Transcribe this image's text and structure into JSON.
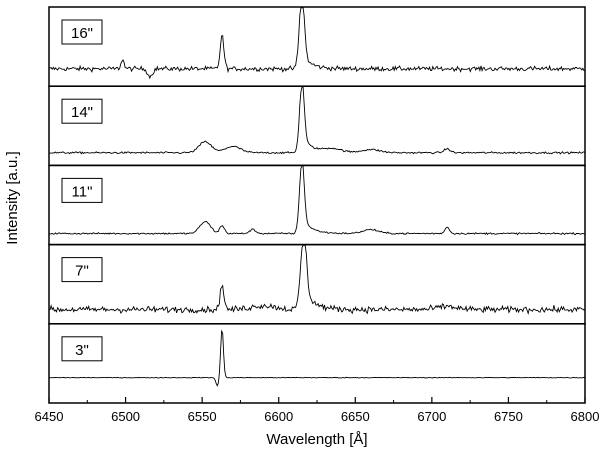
{
  "chart_data": {
    "type": "line",
    "xlabel": "Wavelength [Å]",
    "ylabel": "Intensity [a.u.]",
    "xlim": [
      6450,
      6800
    ],
    "xticks": [
      6450,
      6500,
      6550,
      6600,
      6650,
      6700,
      6750,
      6800
    ],
    "xtick_labels": [
      "6450",
      "6500",
      "6550",
      "6600",
      "6650",
      "6700",
      "6750",
      "6800"
    ],
    "grid": false,
    "line_color": "#000000",
    "panels": [
      {
        "label": "16\"",
        "ylim": [
          0,
          1
        ],
        "baseline": 0.22,
        "noise": 0.055,
        "lines": [
          {
            "center": 6563,
            "amp": 0.42,
            "width": 1.2
          },
          {
            "center": 6615,
            "amp": 0.88,
            "width": 1.6,
            "tail": 0.18
          },
          {
            "center": 6498,
            "amp": 0.12,
            "width": 1.0
          }
        ],
        "dips": [
          {
            "center": 6516,
            "amp": 0.1,
            "width": 1.5
          }
        ]
      },
      {
        "label": "14\"",
        "ylim": [
          0,
          1
        ],
        "baseline": 0.16,
        "noise": 0.022,
        "bumps": [
          {
            "center": 6552,
            "amp": 0.14,
            "width": 4.0
          },
          {
            "center": 6570,
            "amp": 0.08,
            "width": 5.0
          },
          {
            "center": 6635,
            "amp": 0.05,
            "width": 6.0
          },
          {
            "center": 6660,
            "amp": 0.04,
            "width": 6.0
          },
          {
            "center": 6710,
            "amp": 0.05,
            "width": 2.0
          }
        ],
        "lines": [
          {
            "center": 6615,
            "amp": 0.82,
            "width": 1.5,
            "tail": 0.22
          }
        ]
      },
      {
        "label": "11\"",
        "ylim": [
          0,
          1
        ],
        "baseline": 0.14,
        "noise": 0.02,
        "bumps": [
          {
            "center": 6552,
            "amp": 0.15,
            "width": 3.5
          },
          {
            "center": 6563,
            "amp": 0.1,
            "width": 1.5
          },
          {
            "center": 6583,
            "amp": 0.05,
            "width": 2.0
          },
          {
            "center": 6660,
            "amp": 0.05,
            "width": 5.0
          },
          {
            "center": 6710,
            "amp": 0.08,
            "width": 1.5
          }
        ],
        "lines": [
          {
            "center": 6615,
            "amp": 0.86,
            "width": 1.5,
            "tail": 0.2
          }
        ]
      },
      {
        "label": "7\"",
        "ylim": [
          0,
          1
        ],
        "baseline": 0.18,
        "noise": 0.075,
        "bumps": [
          {
            "center": 6590,
            "amp": 0.05,
            "width": 8.0
          },
          {
            "center": 6710,
            "amp": 0.04,
            "width": 6.0
          }
        ],
        "lines": [
          {
            "center": 6563,
            "amp": 0.32,
            "width": 1.2
          },
          {
            "center": 6616,
            "amp": 0.86,
            "width": 1.8,
            "tail": 0.3
          }
        ]
      },
      {
        "label": "3\"",
        "ylim": [
          0,
          1
        ],
        "baseline": 0.32,
        "noise": 0.008,
        "lines": [
          {
            "center": 6563,
            "amp": 0.62,
            "width": 0.9
          }
        ],
        "dips": [
          {
            "center": 6560,
            "amp": 0.1,
            "width": 1.0
          }
        ]
      }
    ]
  }
}
